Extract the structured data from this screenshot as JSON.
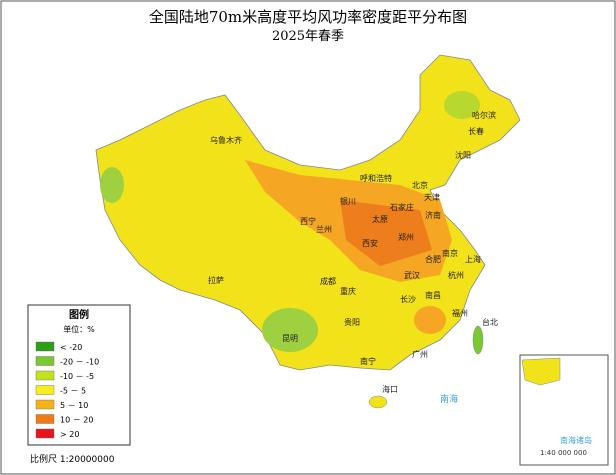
{
  "header": {
    "title": "全国陆地70m米高度平均风功率密度距平分布图",
    "subtitle": "2025年春季"
  },
  "legend": {
    "title": "图例",
    "unit": "单位：%",
    "items": [
      {
        "label": "< -20",
        "color": "#2e9e1a"
      },
      {
        "label": "-20 － -10",
        "color": "#7cc832"
      },
      {
        "label": "-10 － -5",
        "color": "#c4e21c"
      },
      {
        "label": "-5 － 5",
        "color": "#f8ee1e"
      },
      {
        "label": "5 － 10",
        "color": "#f7b21a"
      },
      {
        "label": "10 － 20",
        "color": "#f07a14"
      },
      {
        "label": "> 20",
        "color": "#e8141c"
      }
    ]
  },
  "scale": "比例尺 1:20000000",
  "cities": [
    "乌鲁木齐",
    "哈尔滨",
    "长春",
    "沈阳",
    "呼和浩特",
    "北京",
    "天津",
    "银川",
    "石家庄",
    "太原",
    "济南",
    "西宁",
    "兰州",
    "郑州",
    "西安",
    "合肥",
    "南京",
    "上海",
    "武汉",
    "杭州",
    "成都",
    "重庆",
    "长沙",
    "南昌",
    "福州",
    "拉萨",
    "贵阳",
    "昆明",
    "南宁",
    "广州",
    "台北",
    "海口"
  ],
  "inset": {
    "label": "南海诸岛",
    "scale": "1:40 000 000",
    "sea": "南海"
  }
}
